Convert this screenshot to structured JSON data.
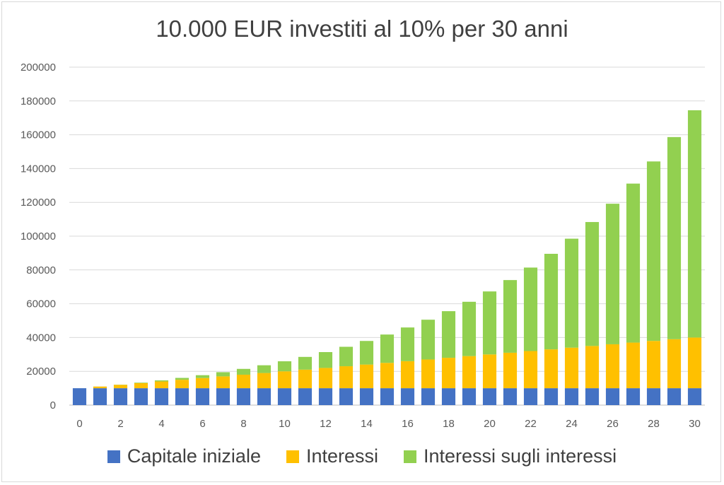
{
  "chart_data": {
    "type": "bar",
    "stacked": true,
    "title": "10.000 EUR investiti al 10% per 30 anni",
    "xlabel": "",
    "ylabel": "",
    "ylim": [
      0,
      200000
    ],
    "yticks": [
      0,
      20000,
      40000,
      60000,
      80000,
      100000,
      120000,
      140000,
      160000,
      180000,
      200000
    ],
    "xtick_labels": [
      "0",
      "2",
      "4",
      "6",
      "8",
      "10",
      "12",
      "14",
      "16",
      "18",
      "20",
      "22",
      "24",
      "26",
      "28",
      "30"
    ],
    "grid": true,
    "legend_position": "bottom",
    "categories": [
      0,
      1,
      2,
      3,
      4,
      5,
      6,
      7,
      8,
      9,
      10,
      11,
      12,
      13,
      14,
      15,
      16,
      17,
      18,
      19,
      20,
      21,
      22,
      23,
      24,
      25,
      26,
      27,
      28,
      29,
      30
    ],
    "series": [
      {
        "name": "Capitale iniziale",
        "color": "#4472c4",
        "values": [
          10000,
          10000,
          10000,
          10000,
          10000,
          10000,
          10000,
          10000,
          10000,
          10000,
          10000,
          10000,
          10000,
          10000,
          10000,
          10000,
          10000,
          10000,
          10000,
          10000,
          10000,
          10000,
          10000,
          10000,
          10000,
          10000,
          10000,
          10000,
          10000,
          10000,
          10000
        ]
      },
      {
        "name": "Interessi",
        "color": "#ffc000",
        "values": [
          0,
          1000,
          2000,
          3000,
          4000,
          5000,
          6000,
          7000,
          8000,
          9000,
          10000,
          11000,
          12000,
          13000,
          14000,
          15000,
          16000,
          17000,
          18000,
          19000,
          20000,
          21000,
          22000,
          23000,
          24000,
          25000,
          26000,
          27000,
          28000,
          29000,
          30000
        ]
      },
      {
        "name": "Interessi sugli interessi",
        "color": "#92d050",
        "values": [
          0,
          0,
          100,
          310,
          641,
          1105,
          1716,
          2487,
          3436,
          4579,
          5937,
          7531,
          9384,
          11523,
          13975,
          16772,
          19950,
          23545,
          27599,
          32159,
          37275,
          43002,
          49403,
          56543,
          64497,
          73347,
          83182,
          94100,
          106210,
          119631,
          134494
        ]
      }
    ]
  }
}
